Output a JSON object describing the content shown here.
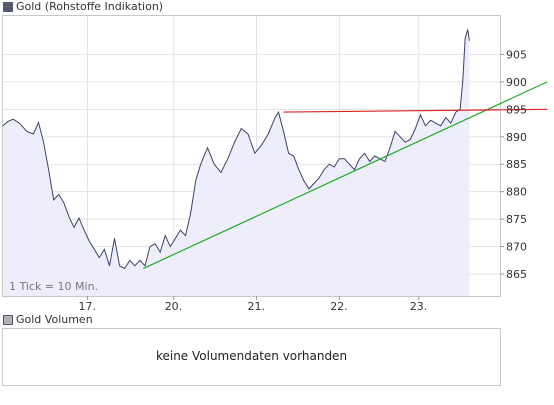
{
  "price_panel": {
    "legend_label": "Gold (Rohstoffe Indikation)",
    "legend_color": "#555a6e",
    "resolution_label": "1 Tick = 10 Min."
  },
  "volume_panel": {
    "legend_label": "Gold Volumen",
    "legend_color": "#b4b4b4",
    "no_data_text": "keine Volumendaten vorhanden"
  },
  "chart_data": {
    "type": "line",
    "title": "Gold (Rohstoffe Indikation)",
    "xlabel": "",
    "ylabel": "",
    "x_ticks": [
      "17.",
      "20.",
      "21.",
      "22.",
      "23."
    ],
    "y_ticks": [
      865,
      870,
      875,
      880,
      885,
      890,
      895,
      900,
      905
    ],
    "ylim": [
      861,
      912
    ],
    "y_axis_side": "right",
    "grid": true,
    "line_color": "#3a4266",
    "area_fill": "#eeeefb",
    "series": [
      {
        "name": "Gold",
        "points": [
          [
            0,
            892
          ],
          [
            0.3,
            892.8
          ],
          [
            0.6,
            893.2
          ],
          [
            1,
            892.4
          ],
          [
            1.4,
            891
          ],
          [
            1.8,
            890.5
          ],
          [
            2.1,
            892.6
          ],
          [
            2.4,
            889
          ],
          [
            2.7,
            884
          ],
          [
            3,
            878.5
          ],
          [
            3.3,
            879.5
          ],
          [
            3.6,
            878
          ],
          [
            3.9,
            875.5
          ],
          [
            4.2,
            873.5
          ],
          [
            4.5,
            875.2
          ],
          [
            4.8,
            873
          ],
          [
            5.1,
            871
          ],
          [
            5.4,
            869.5
          ],
          [
            5.7,
            868
          ],
          [
            6,
            869.5
          ],
          [
            6.3,
            866.5
          ],
          [
            6.6,
            871.5
          ],
          [
            6.9,
            866.5
          ],
          [
            7.2,
            866
          ],
          [
            7.5,
            867.5
          ],
          [
            7.8,
            866.5
          ],
          [
            8.1,
            867.5
          ],
          [
            8.4,
            866.5
          ],
          [
            8.7,
            870
          ],
          [
            9,
            870.5
          ],
          [
            9.3,
            869
          ],
          [
            9.6,
            872
          ],
          [
            9.9,
            870
          ],
          [
            10.2,
            871.5
          ],
          [
            10.5,
            873
          ],
          [
            10.8,
            872
          ],
          [
            11.1,
            876
          ],
          [
            11.4,
            882
          ],
          [
            11.7,
            885
          ],
          [
            12.1,
            888
          ],
          [
            12.5,
            885
          ],
          [
            12.9,
            883.5
          ],
          [
            13.3,
            886
          ],
          [
            13.7,
            889
          ],
          [
            14.1,
            891.5
          ],
          [
            14.5,
            890.5
          ],
          [
            14.9,
            887
          ],
          [
            15.3,
            888.5
          ],
          [
            15.7,
            890.5
          ],
          [
            16.1,
            893.5
          ],
          [
            16.3,
            894.5
          ],
          [
            16.6,
            891
          ],
          [
            16.9,
            887
          ],
          [
            17.2,
            886.5
          ],
          [
            17.5,
            884
          ],
          [
            17.8,
            882
          ],
          [
            18.1,
            880.5
          ],
          [
            18.4,
            881.5
          ],
          [
            18.7,
            882.5
          ],
          [
            19,
            884
          ],
          [
            19.3,
            885
          ],
          [
            19.6,
            884.5
          ],
          [
            19.9,
            886
          ],
          [
            20.2,
            886
          ],
          [
            20.5,
            885
          ],
          [
            20.8,
            884
          ],
          [
            21.1,
            886
          ],
          [
            21.4,
            887
          ],
          [
            21.7,
            885.5
          ],
          [
            22,
            886.5
          ],
          [
            22.3,
            886
          ],
          [
            22.6,
            885.5
          ],
          [
            22.9,
            888
          ],
          [
            23.2,
            891
          ],
          [
            23.5,
            890
          ],
          [
            23.8,
            889
          ],
          [
            24.1,
            889.5
          ],
          [
            24.4,
            891.5
          ],
          [
            24.7,
            894
          ],
          [
            25,
            892
          ],
          [
            25.3,
            893
          ],
          [
            25.6,
            892.5
          ],
          [
            25.9,
            892
          ],
          [
            26.2,
            893.5
          ],
          [
            26.5,
            892.5
          ],
          [
            26.8,
            894.5
          ],
          [
            27.05,
            895
          ],
          [
            27.2,
            900
          ],
          [
            27.35,
            908
          ],
          [
            27.5,
            909.5
          ],
          [
            27.6,
            907.5
          ]
        ]
      }
    ],
    "trend_lines": [
      {
        "color": "#22aa22",
        "from": [
          8.3,
          866
        ],
        "to": [
          32.2,
          900
        ]
      },
      {
        "color": "#dd2222",
        "from": [
          16.6,
          894.5
        ],
        "to": [
          32.2,
          895
        ]
      }
    ]
  }
}
